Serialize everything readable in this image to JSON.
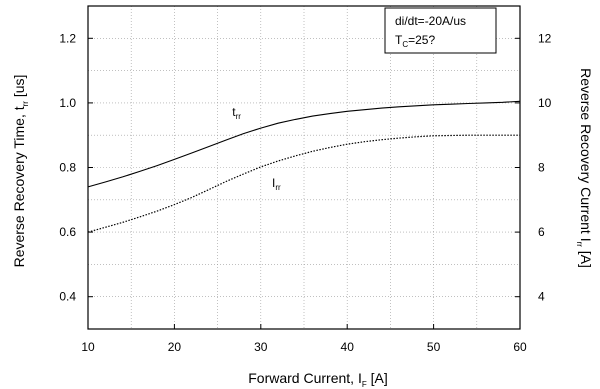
{
  "chart_data": {
    "type": "line",
    "xlabel": {
      "text": "Forward Current, I",
      "sub": "F",
      "unit": " [A]"
    },
    "ylabel_left": {
      "text": "Reverse Recovery Time,  t",
      "sub": "rr",
      "unit": " [us]"
    },
    "ylabel_right": {
      "text": "Reverse Recovery Current  I",
      "sub": "rr",
      "unit": " [A]"
    },
    "xlim": [
      10,
      60
    ],
    "ylim_left": [
      0.3,
      1.3
    ],
    "ylim_right": [
      3,
      13
    ],
    "x_ticks": [
      10,
      20,
      30,
      40,
      50,
      60
    ],
    "x_tick_labels": [
      "10",
      "20",
      "30",
      "40",
      "50",
      "60"
    ],
    "y_left_ticks": [
      0.4,
      0.6,
      0.8,
      1.0,
      1.2
    ],
    "y_left_tick_labels": [
      "0.4",
      "0.6",
      "0.8",
      "1.0",
      "1.2"
    ],
    "y_right_ticks": [
      4,
      6,
      8,
      10,
      12
    ],
    "y_right_tick_labels": [
      "4",
      "6",
      "8",
      "10",
      "12"
    ],
    "grid": true,
    "series": [
      {
        "name": "t",
        "name_sub": "rr",
        "axis": "left",
        "style": "solid",
        "color": "#000000",
        "x": [
          10,
          12,
          14,
          16,
          18,
          20,
          22,
          24,
          26,
          28,
          30,
          32,
          34,
          36,
          38,
          40,
          42,
          44,
          46,
          48,
          50,
          52,
          54,
          56,
          58,
          60
        ],
        "y": [
          0.74,
          0.755,
          0.771,
          0.788,
          0.806,
          0.825,
          0.845,
          0.865,
          0.885,
          0.905,
          0.922,
          0.937,
          0.949,
          0.959,
          0.967,
          0.974,
          0.979,
          0.984,
          0.988,
          0.991,
          0.994,
          0.996,
          0.998,
          1.0,
          1.002,
          1.005
        ]
      },
      {
        "name": "I",
        "name_sub": "rr",
        "axis": "right",
        "style": "dotted",
        "color": "#000000",
        "x": [
          10,
          12,
          14,
          16,
          18,
          20,
          22,
          24,
          26,
          28,
          30,
          32,
          34,
          36,
          38,
          40,
          42,
          44,
          46,
          48,
          50,
          52,
          54,
          56,
          58,
          60
        ],
        "y": [
          6.0,
          6.15,
          6.3,
          6.47,
          6.65,
          6.85,
          7.07,
          7.32,
          7.57,
          7.8,
          8.02,
          8.2,
          8.36,
          8.5,
          8.62,
          8.72,
          8.8,
          8.86,
          8.91,
          8.95,
          8.98,
          8.99,
          9.0,
          9.0,
          9.0,
          9.0
        ]
      }
    ],
    "annotation": {
      "line1": "di/dt=-20A/us",
      "line2_pre": "T",
      "line2_sub": "C",
      "line2_post": "=25?"
    }
  }
}
